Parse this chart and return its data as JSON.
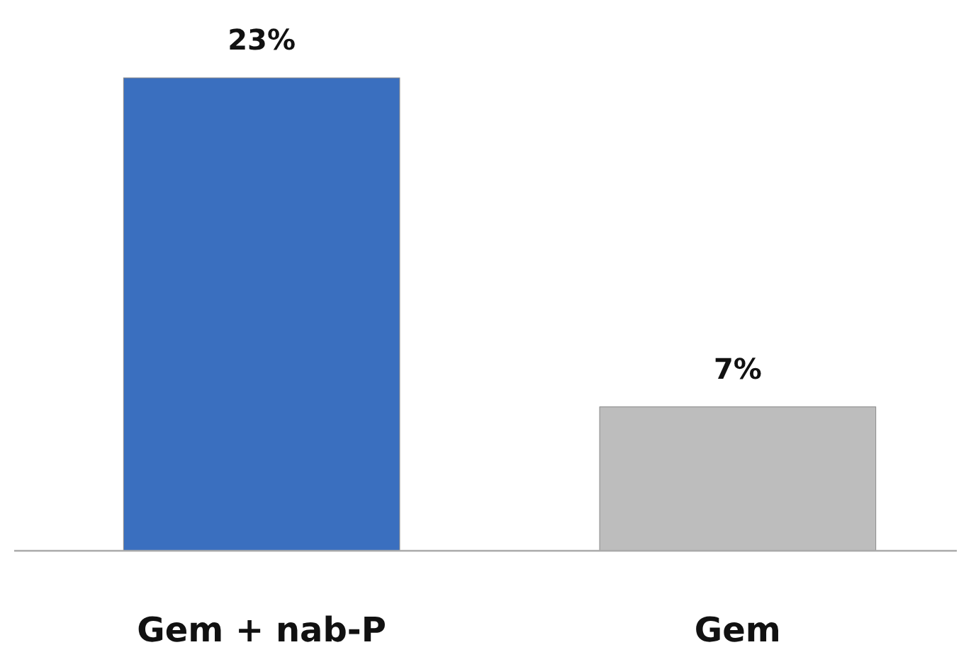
{
  "chart_data": {
    "type": "bar",
    "categories": [
      "Gem + nab-P",
      "Gem"
    ],
    "values": [
      23,
      7
    ],
    "value_labels": [
      "23%",
      "7%"
    ],
    "colors": [
      "#3a6fbf",
      "#bdbdbd"
    ]
  }
}
